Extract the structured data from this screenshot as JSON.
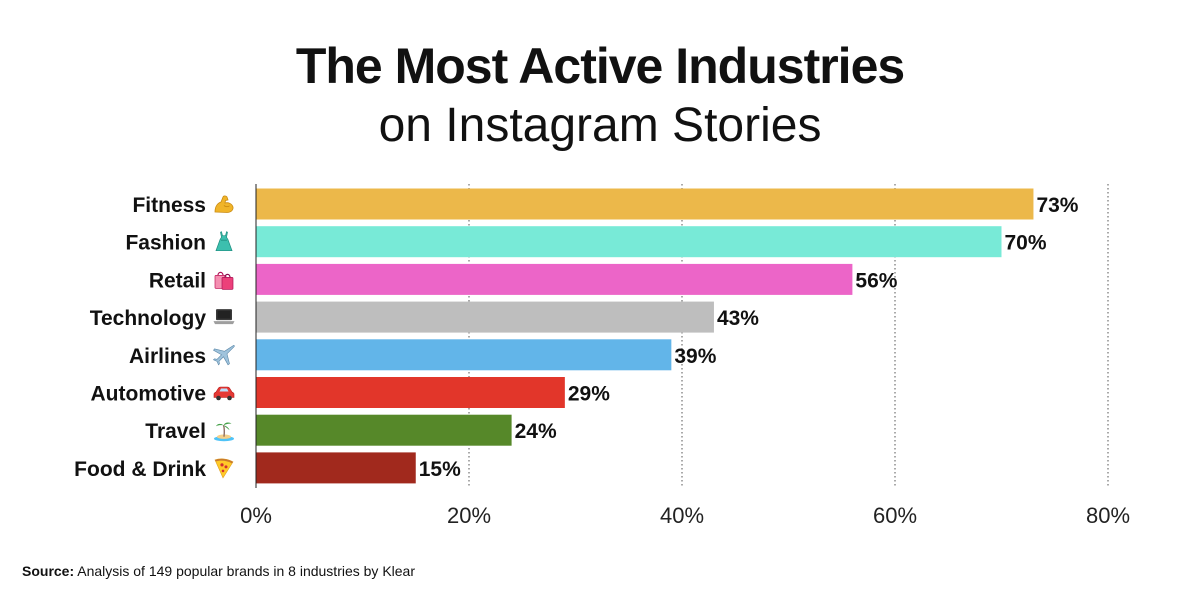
{
  "chart_data": {
    "type": "bar",
    "orientation": "horizontal",
    "title": "The Most Active Industries",
    "subtitle": "on Instagram Stories",
    "categories": [
      "Fitness",
      "Fashion",
      "Retail",
      "Technology",
      "Airlines",
      "Automotive",
      "Travel",
      "Food & Drink"
    ],
    "category_icons": [
      "flexed-biceps-icon",
      "dress-icon",
      "shopping-bags-icon",
      "laptop-icon",
      "airplane-icon",
      "car-icon",
      "desert-island-icon",
      "pizza-icon"
    ],
    "values": [
      73,
      70,
      56,
      43,
      39,
      29,
      24,
      15
    ],
    "value_labels": [
      "73%",
      "70%",
      "56%",
      "43%",
      "39%",
      "29%",
      "24%",
      "15%"
    ],
    "colors": [
      "#ECB84A",
      "#78EAD7",
      "#EC65C8",
      "#BEBEBE",
      "#62B5E9",
      "#E2362A",
      "#568829",
      "#A1291D"
    ],
    "xlim": [
      0,
      80
    ],
    "xticks": [
      0,
      20,
      40,
      60,
      80
    ],
    "xtick_labels": [
      "0%",
      "20%",
      "40%",
      "60%",
      "80%"
    ],
    "grid": "vertical dotted",
    "legend": "none"
  },
  "source": {
    "label": "Source:",
    "text": "Analysis of 149 popular brands in 8 industries by Klear"
  }
}
